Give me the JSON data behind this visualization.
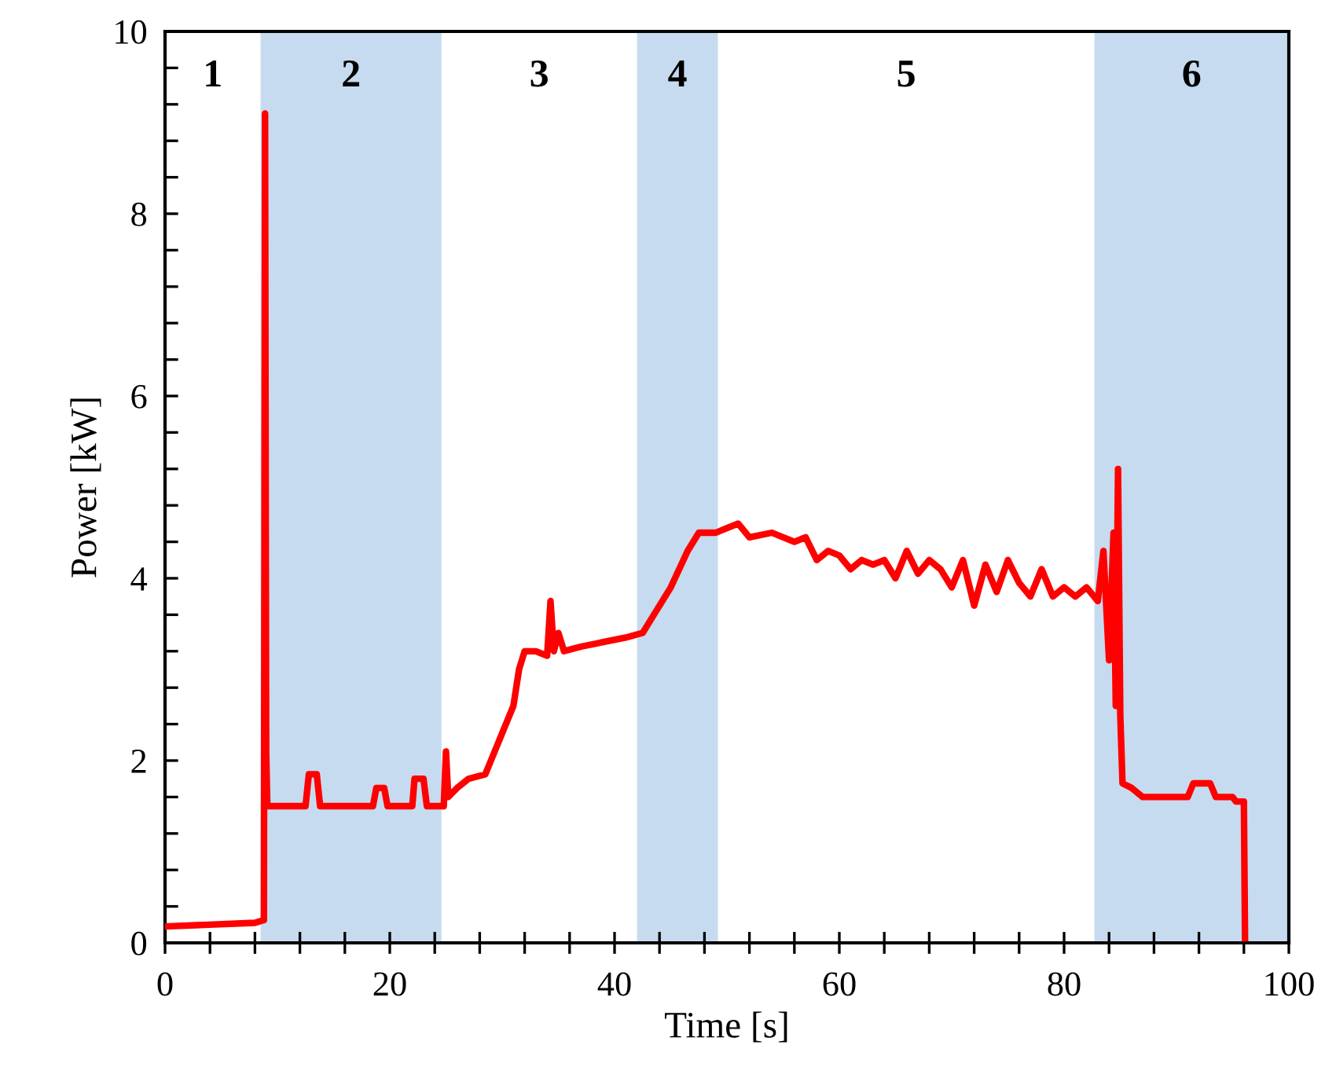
{
  "chart_data": {
    "type": "line",
    "xlabel": "Time [s]",
    "ylabel": "Power [kW]",
    "xlim": [
      0,
      100
    ],
    "ylim": [
      0,
      10
    ],
    "xticks": [
      0,
      {
        "value": 4,
        "label": null
      },
      {
        "value": 8,
        "label": null
      },
      {
        "value": 12,
        "label": null
      },
      {
        "value": 16,
        "label": null
      },
      20,
      {
        "value": 24,
        "label": null
      },
      {
        "value": 28,
        "label": null
      },
      {
        "value": 32,
        "label": null
      },
      {
        "value": 36,
        "label": null
      },
      40,
      {
        "value": 44,
        "label": null
      },
      {
        "value": 48,
        "label": null
      },
      {
        "value": 52,
        "label": null
      },
      {
        "value": 56,
        "label": null
      },
      60,
      {
        "value": 64,
        "label": null
      },
      {
        "value": 68,
        "label": null
      },
      {
        "value": 72,
        "label": null
      },
      {
        "value": 76,
        "label": null
      },
      80,
      {
        "value": 84,
        "label": null
      },
      {
        "value": 88,
        "label": null
      },
      {
        "value": 92,
        "label": null
      },
      {
        "value": 96,
        "label": null
      },
      100
    ],
    "yticks": [
      0,
      {
        "value": 0.4,
        "label": null
      },
      {
        "value": 0.8,
        "label": null
      },
      {
        "value": 1.2,
        "label": null
      },
      {
        "value": 1.6,
        "label": null
      },
      2,
      {
        "value": 2.4,
        "label": null
      },
      {
        "value": 2.8,
        "label": null
      },
      {
        "value": 3.2,
        "label": null
      },
      {
        "value": 3.6,
        "label": null
      },
      4,
      {
        "value": 4.4,
        "label": null
      },
      {
        "value": 4.8,
        "label": null
      },
      {
        "value": 5.2,
        "label": null
      },
      {
        "value": 5.6,
        "label": null
      },
      6,
      {
        "value": 6.4,
        "label": null
      },
      {
        "value": 6.8,
        "label": null
      },
      {
        "value": 7.2,
        "label": null
      },
      {
        "value": 7.6,
        "label": null
      },
      8,
      {
        "value": 8.4,
        "label": null
      },
      {
        "value": 8.8,
        "label": null
      },
      {
        "value": 9.2,
        "label": null
      },
      {
        "value": 9.6,
        "label": null
      },
      10
    ],
    "grid": false,
    "legend": false,
    "marker": "none",
    "line_style": "solid",
    "series": [
      {
        "color": "#ff0000",
        "x": [
          0,
          8.0,
          8.8,
          8.9,
          9.0,
          9.1,
          12.5,
          12.8,
          13.5,
          13.8,
          18.5,
          18.8,
          19.5,
          19.8,
          22.0,
          22.2,
          23.0,
          23.3,
          24.8,
          25.0,
          25.2,
          26.0,
          27.0,
          28.5,
          29.0,
          30.0,
          31.0,
          31.5,
          32.0,
          33.0,
          34.0,
          34.3,
          34.6,
          35.0,
          35.5,
          37,
          39,
          41,
          42.5,
          43.5,
          45,
          46.5,
          47.5,
          49,
          50,
          51,
          52,
          54,
          56,
          57,
          58,
          59,
          60,
          61,
          62,
          63,
          64,
          65,
          66,
          67,
          68,
          69,
          70,
          71,
          72,
          73,
          74,
          75,
          76,
          77,
          78,
          79,
          80,
          81,
          82,
          83,
          83.5,
          84,
          84.4,
          84.6,
          84.8,
          85.0,
          85.2,
          86,
          87,
          91,
          91.5,
          93,
          93.5,
          95,
          95.3,
          96.0,
          96.1
        ],
        "values": [
          0.18,
          0.22,
          0.25,
          9.1,
          2.1,
          1.5,
          1.5,
          1.85,
          1.85,
          1.5,
          1.5,
          1.7,
          1.7,
          1.5,
          1.5,
          1.8,
          1.8,
          1.5,
          1.5,
          2.1,
          1.6,
          1.7,
          1.8,
          1.85,
          2.0,
          2.3,
          2.6,
          3.0,
          3.2,
          3.2,
          3.15,
          3.75,
          3.2,
          3.4,
          3.2,
          3.25,
          3.3,
          3.35,
          3.4,
          3.6,
          3.9,
          4.3,
          4.5,
          4.5,
          4.55,
          4.6,
          4.45,
          4.5,
          4.4,
          4.45,
          4.2,
          4.3,
          4.25,
          4.1,
          4.2,
          4.15,
          4.2,
          4.0,
          4.3,
          4.05,
          4.2,
          4.1,
          3.9,
          4.2,
          3.7,
          4.15,
          3.85,
          4.2,
          3.95,
          3.8,
          4.1,
          3.8,
          3.9,
          3.8,
          3.9,
          3.75,
          4.3,
          3.1,
          4.5,
          2.6,
          5.2,
          2.5,
          1.75,
          1.7,
          1.6,
          1.6,
          1.75,
          1.75,
          1.6,
          1.6,
          1.55,
          1.55,
          0.05
        ]
      }
    ],
    "bands": [
      {
        "axis": "x",
        "from": 8.5,
        "to": 24.6,
        "color": "#c6dbef"
      },
      {
        "axis": "x",
        "from": 42.0,
        "to": 49.2,
        "color": "#c6dbef"
      },
      {
        "axis": "x",
        "from": 82.7,
        "to": 100,
        "color": "#c6dbef"
      }
    ],
    "annotations": [
      "1",
      "2",
      "3",
      "4",
      "5",
      "6"
    ]
  }
}
